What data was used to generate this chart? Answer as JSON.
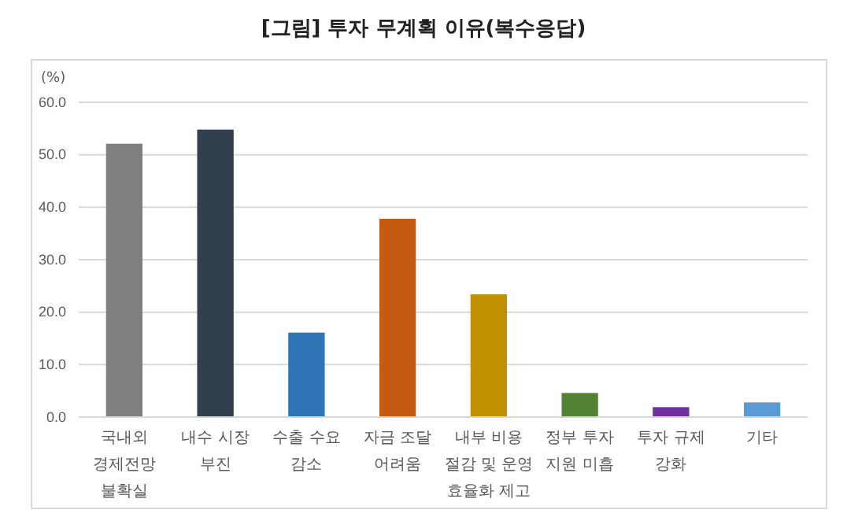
{
  "chart_data": {
    "type": "bar",
    "title": "[그림] 투자 무계획 이유(복수응답)",
    "ylabel": "(%)",
    "categories": [
      "국내외\n경제전망\n불확실",
      "내수 시장\n부진",
      "수출 수요\n감소",
      "자금 조달\n어려움",
      "내부 비용\n절감 및 운영\n효율화 제고",
      "정부 투자\n지원 미흡",
      "투자 규제\n강화",
      "기타"
    ],
    "values": [
      52.1,
      54.8,
      16.1,
      37.8,
      23.4,
      4.6,
      1.9,
      2.8
    ],
    "colors": [
      "#7f7f7f",
      "#323f4f",
      "#2e75b6",
      "#c55a11",
      "#bf9000",
      "#548235",
      "#7030a0",
      "#5b9bd5"
    ],
    "ylim": [
      0,
      60
    ],
    "yticks": [
      {
        "value": 0,
        "label": "0.0"
      },
      {
        "value": 10,
        "label": "10.0"
      },
      {
        "value": 20,
        "label": "20.0"
      },
      {
        "value": 30,
        "label": "30.0"
      },
      {
        "value": 40,
        "label": "40.0"
      },
      {
        "value": 50,
        "label": "50.0"
      },
      {
        "value": 60,
        "label": "60.0"
      }
    ],
    "grid": "y"
  }
}
